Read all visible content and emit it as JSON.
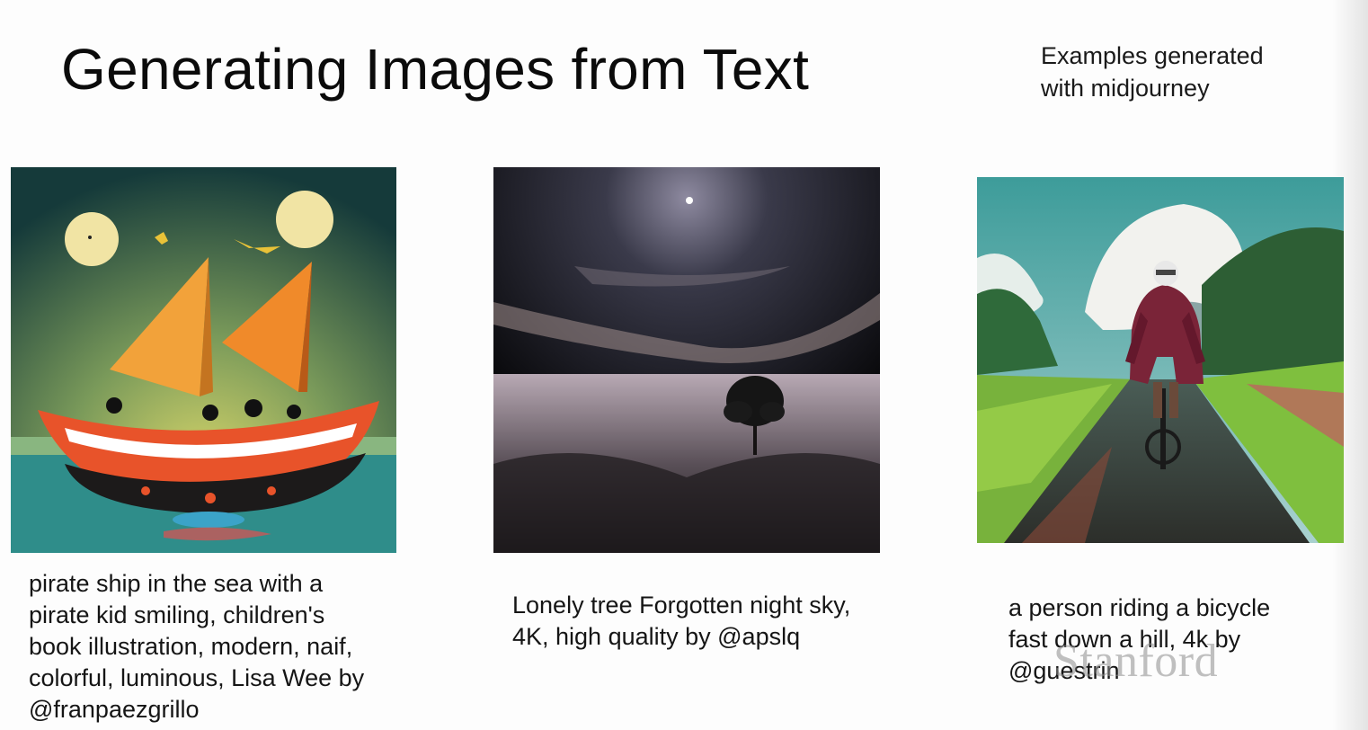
{
  "slide": {
    "title": "Generating Images from Text",
    "note": "Examples generated with midjourney",
    "watermark": "Stanford"
  },
  "examples": [
    {
      "image_icon": "pirate-ship-illustration",
      "caption": "pirate ship in the sea with a pirate kid smiling, children's book illustration, modern, naif, colorful, luminous, Lisa Wee by @franpaezgrillo"
    },
    {
      "image_icon": "lonely-tree-night-sky",
      "caption": "Lonely tree Forgotten night sky, 4K, high quality by @apslq"
    },
    {
      "image_icon": "person-riding-bicycle",
      "caption": "a person riding a bicycle fast down a hill, 4k by @guestrin"
    }
  ]
}
